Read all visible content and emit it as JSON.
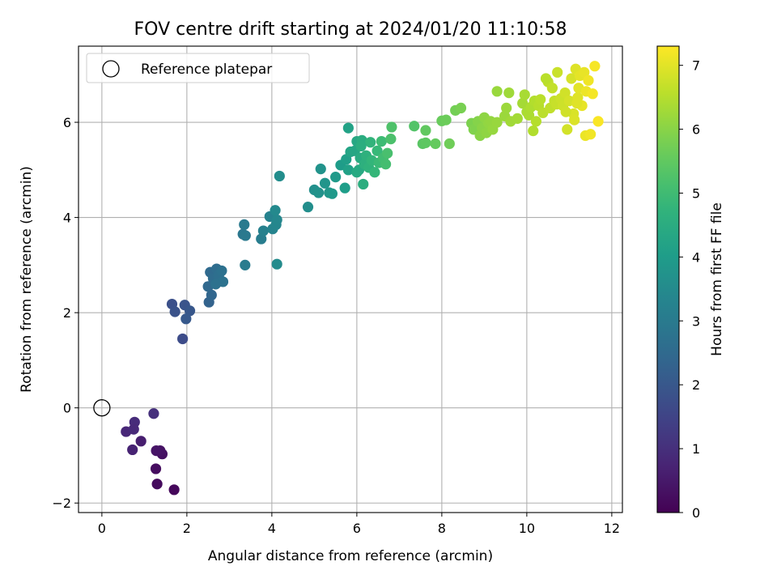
{
  "chart_data": {
    "type": "scatter",
    "title": "FOV centre drift starting at 2024/01/20 11:10:58",
    "xlabel": "Angular distance from reference (arcmin)",
    "ylabel": "Rotation from reference (arcmin)",
    "xlim": [
      -0.55,
      12.25
    ],
    "ylim": [
      -2.2,
      7.6
    ],
    "xticks": [
      0,
      2,
      4,
      6,
      8,
      10,
      12
    ],
    "yticks": [
      -2,
      0,
      2,
      4,
      6
    ],
    "grid": true,
    "colorbar": {
      "label": "Hours from first FF file",
      "colormap": "viridis",
      "range": [
        0,
        7.3
      ],
      "ticks": [
        0,
        1,
        2,
        3,
        4,
        5,
        6,
        7
      ]
    },
    "legend": {
      "position": "top-left",
      "entries": [
        "Reference platepar"
      ]
    },
    "reference_marker": {
      "x": 0,
      "y": 0
    },
    "points": [
      [
        1.7,
        -1.72,
        0.15
      ],
      [
        1.3,
        -1.6,
        0.2
      ],
      [
        1.27,
        -1.28,
        0.25
      ],
      [
        1.42,
        -0.97,
        0.3
      ],
      [
        1.37,
        -0.9,
        0.35
      ],
      [
        1.28,
        -0.9,
        0.4
      ],
      [
        0.92,
        -0.7,
        0.6
      ],
      [
        0.72,
        -0.88,
        0.7
      ],
      [
        0.57,
        -0.5,
        0.8
      ],
      [
        0.77,
        -0.3,
        0.9
      ],
      [
        1.22,
        -0.12,
        1.0
      ],
      [
        0.75,
        -0.45,
        0.85
      ],
      [
        1.9,
        1.45,
        1.7
      ],
      [
        1.65,
        2.18,
        1.8
      ],
      [
        1.72,
        2.02,
        1.85
      ],
      [
        1.95,
        2.16,
        1.9
      ],
      [
        2.07,
        2.04,
        2.0
      ],
      [
        1.98,
        1.87,
        2.05
      ],
      [
        2.52,
        2.22,
        2.3
      ],
      [
        2.58,
        2.37,
        2.4
      ],
      [
        2.5,
        2.55,
        2.45
      ],
      [
        2.55,
        2.85,
        2.5
      ],
      [
        2.62,
        2.72,
        2.55
      ],
      [
        2.7,
        2.92,
        2.6
      ],
      [
        2.75,
        2.78,
        2.65
      ],
      [
        2.82,
        2.88,
        2.7
      ],
      [
        2.85,
        2.65,
        2.75
      ],
      [
        2.68,
        2.6,
        2.7
      ],
      [
        3.32,
        3.65,
        2.9
      ],
      [
        3.38,
        3.62,
        2.95
      ],
      [
        3.35,
        3.85,
        3.0
      ],
      [
        3.37,
        3.0,
        3.05
      ],
      [
        3.75,
        3.55,
        3.1
      ],
      [
        3.8,
        3.72,
        3.2
      ],
      [
        3.95,
        4.02,
        3.25
      ],
      [
        4.02,
        3.76,
        3.3
      ],
      [
        4.1,
        3.85,
        3.35
      ],
      [
        4.12,
        3.95,
        3.4
      ],
      [
        4.08,
        4.15,
        3.45
      ],
      [
        4.12,
        3.02,
        3.5
      ],
      [
        4.18,
        4.87,
        3.55
      ],
      [
        4.85,
        4.22,
        3.6
      ],
      [
        5.0,
        4.58,
        3.65
      ],
      [
        5.1,
        4.52,
        3.7
      ],
      [
        5.15,
        5.02,
        3.75
      ],
      [
        5.25,
        4.72,
        3.8
      ],
      [
        5.35,
        4.52,
        3.85
      ],
      [
        5.42,
        4.5,
        3.9
      ],
      [
        5.5,
        4.85,
        3.95
      ],
      [
        5.62,
        5.1,
        4.0
      ],
      [
        5.72,
        4.62,
        4.05
      ],
      [
        5.75,
        5.22,
        4.1
      ],
      [
        5.8,
        5.0,
        4.15
      ],
      [
        5.8,
        5.88,
        4.2
      ],
      [
        5.85,
        5.38,
        4.25
      ],
      [
        5.95,
        5.4,
        4.3
      ],
      [
        6.0,
        5.6,
        4.35
      ],
      [
        6.05,
        5.0,
        4.4
      ],
      [
        6.08,
        5.25,
        4.45
      ],
      [
        6.12,
        5.62,
        4.5
      ],
      [
        6.15,
        4.7,
        4.55
      ],
      [
        6.18,
        5.12,
        4.6
      ],
      [
        6.22,
        5.3,
        4.65
      ],
      [
        6.28,
        5.05,
        4.7
      ],
      [
        6.32,
        5.58,
        4.75
      ],
      [
        6.35,
        5.2,
        4.8
      ],
      [
        6.42,
        4.95,
        4.85
      ],
      [
        6.48,
        5.4,
        4.9
      ],
      [
        6.52,
        5.15,
        4.95
      ],
      [
        6.58,
        5.6,
        5.0
      ],
      [
        6.62,
        5.25,
        5.05
      ],
      [
        6.68,
        5.12,
        5.1
      ],
      [
        6.72,
        5.35,
        5.15
      ],
      [
        6.8,
        5.65,
        5.2
      ],
      [
        6.82,
        5.9,
        5.25
      ],
      [
        6.1,
        5.5,
        4.55
      ],
      [
        6.0,
        4.95,
        4.4
      ],
      [
        7.35,
        5.92,
        5.3
      ],
      [
        7.55,
        5.55,
        5.4
      ],
      [
        7.62,
        5.57,
        5.45
      ],
      [
        7.62,
        5.83,
        5.5
      ],
      [
        7.85,
        5.55,
        5.55
      ],
      [
        8.0,
        6.03,
        5.6
      ],
      [
        8.1,
        6.05,
        5.65
      ],
      [
        8.18,
        5.55,
        5.7
      ],
      [
        8.32,
        6.25,
        5.75
      ],
      [
        8.45,
        6.3,
        5.8
      ],
      [
        8.7,
        5.98,
        5.85
      ],
      [
        8.75,
        5.85,
        5.9
      ],
      [
        8.85,
        6.02,
        5.95
      ],
      [
        8.9,
        5.72,
        6.0
      ],
      [
        8.95,
        5.88,
        6.02
      ],
      [
        9.0,
        6.1,
        6.05
      ],
      [
        9.05,
        5.78,
        6.07
      ],
      [
        9.1,
        5.98,
        6.1
      ],
      [
        9.15,
        6.02,
        6.12
      ],
      [
        9.2,
        5.85,
        6.15
      ],
      [
        9.3,
        6.0,
        6.17
      ],
      [
        9.48,
        6.13,
        6.2
      ],
      [
        9.52,
        6.3,
        6.22
      ],
      [
        9.58,
        6.62,
        6.25
      ],
      [
        9.62,
        6.02,
        6.27
      ],
      [
        9.78,
        6.08,
        6.3
      ],
      [
        9.9,
        6.4,
        6.32
      ],
      [
        9.95,
        6.58,
        6.35
      ],
      [
        10.0,
        6.22,
        6.37
      ],
      [
        10.05,
        6.15,
        6.4
      ],
      [
        10.1,
        6.32,
        6.42
      ],
      [
        10.15,
        5.82,
        6.45
      ],
      [
        10.18,
        6.45,
        6.47
      ],
      [
        10.22,
        6.02,
        6.5
      ],
      [
        10.28,
        6.35,
        6.52
      ],
      [
        10.32,
        6.48,
        6.55
      ],
      [
        10.38,
        6.2,
        6.57
      ],
      [
        10.5,
        6.85,
        6.6
      ],
      [
        10.55,
        6.3,
        6.62
      ],
      [
        10.6,
        6.72,
        6.65
      ],
      [
        10.65,
        6.45,
        6.67
      ],
      [
        10.7,
        6.38,
        6.7
      ],
      [
        10.72,
        7.05,
        6.72
      ],
      [
        10.8,
        6.5,
        6.75
      ],
      [
        10.85,
        6.35,
        6.77
      ],
      [
        10.9,
        6.62,
        6.8
      ],
      [
        10.95,
        5.85,
        6.82
      ],
      [
        11.0,
        6.45,
        6.85
      ],
      [
        11.05,
        6.92,
        6.87
      ],
      [
        11.1,
        6.18,
        6.9
      ],
      [
        11.12,
        6.05,
        6.92
      ],
      [
        11.15,
        7.12,
        6.95
      ],
      [
        11.2,
        6.52,
        6.97
      ],
      [
        11.22,
        6.72,
        7.0
      ],
      [
        11.25,
        6.98,
        7.02
      ],
      [
        11.3,
        6.35,
        7.05
      ],
      [
        11.35,
        7.05,
        7.07
      ],
      [
        11.38,
        5.72,
        7.1
      ],
      [
        11.4,
        6.65,
        7.12
      ],
      [
        11.45,
        6.88,
        7.15
      ],
      [
        11.5,
        5.75,
        7.17
      ],
      [
        11.55,
        6.6,
        7.2
      ],
      [
        11.6,
        7.18,
        7.22
      ],
      [
        11.68,
        6.02,
        7.25
      ],
      [
        10.45,
        6.92,
        6.55
      ],
      [
        10.92,
        6.22,
        6.8
      ],
      [
        11.18,
        6.4,
        6.97
      ],
      [
        9.3,
        6.65,
        6.18
      ]
    ]
  }
}
